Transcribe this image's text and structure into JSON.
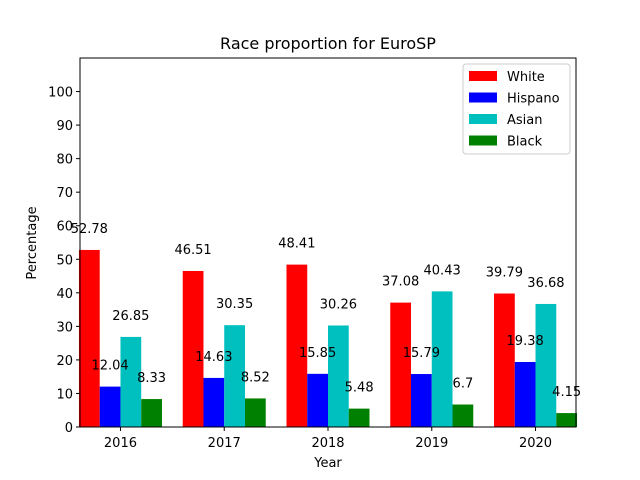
{
  "chart_data": {
    "type": "bar",
    "title": "Race proportion for EuroSP",
    "xlabel": "Year",
    "ylabel": "Percentage",
    "categories": [
      "2016",
      "2017",
      "2018",
      "2019",
      "2020"
    ],
    "ylim": [
      0,
      110
    ],
    "yticks": [
      0,
      10,
      20,
      30,
      40,
      50,
      60,
      70,
      80,
      90,
      100
    ],
    "grid": false,
    "legend_position": "top-right",
    "series": [
      {
        "name": "White",
        "color": "#ff0000",
        "values": [
          52.78,
          46.51,
          48.41,
          37.08,
          39.79
        ]
      },
      {
        "name": "Hispano",
        "color": "#0000ff",
        "values": [
          12.04,
          14.63,
          15.85,
          15.79,
          19.38
        ]
      },
      {
        "name": "Asian",
        "color": "#00bfbf",
        "values": [
          26.85,
          30.35,
          30.26,
          40.43,
          36.68
        ]
      },
      {
        "name": "Black",
        "color": "#008000",
        "values": [
          8.33,
          8.52,
          5.48,
          6.7,
          4.15
        ]
      }
    ]
  }
}
